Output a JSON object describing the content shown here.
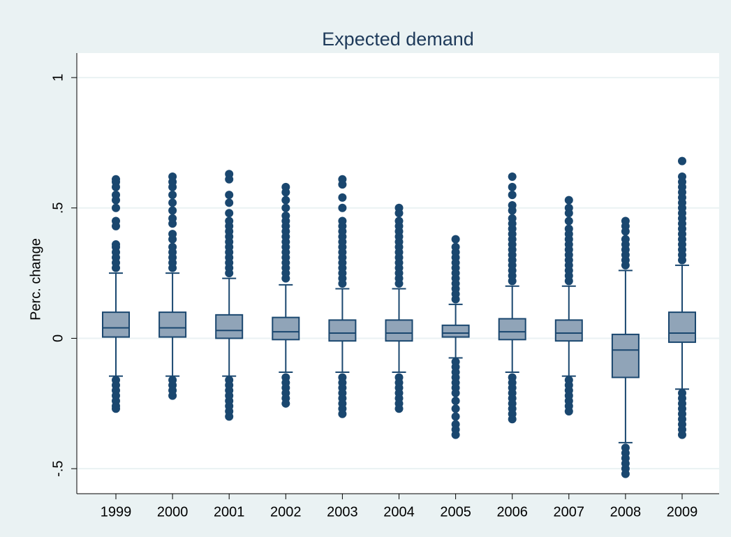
{
  "chart_data": {
    "type": "box",
    "title": "Expected demand",
    "y_label": "Perc. change",
    "categories": [
      "1999",
      "2000",
      "2001",
      "2002",
      "2003",
      "2004",
      "2005",
      "2006",
      "2007",
      "2008",
      "2009"
    ],
    "boxes": [
      {
        "whisker_low": -0.145,
        "q1": 0.005,
        "median": 0.04,
        "q3": 0.1,
        "whisker_high": 0.25,
        "outliers": [
          0.27,
          0.29,
          0.31,
          0.33,
          0.35,
          0.36,
          0.43,
          0.45,
          0.5,
          0.53,
          0.55,
          0.58,
          0.6,
          0.61,
          -0.16,
          -0.18,
          -0.2,
          -0.22,
          -0.24,
          -0.26,
          -0.27
        ]
      },
      {
        "whisker_low": -0.145,
        "q1": 0.005,
        "median": 0.04,
        "q3": 0.1,
        "whisker_high": 0.25,
        "outliers": [
          0.27,
          0.29,
          0.31,
          0.33,
          0.35,
          0.38,
          0.4,
          0.44,
          0.46,
          0.49,
          0.52,
          0.55,
          0.58,
          0.6,
          0.62,
          -0.16,
          -0.18,
          -0.2,
          -0.22
        ]
      },
      {
        "whisker_low": -0.145,
        "q1": 0.0,
        "median": 0.03,
        "q3": 0.09,
        "whisker_high": 0.23,
        "outliers": [
          0.25,
          0.27,
          0.29,
          0.31,
          0.33,
          0.35,
          0.37,
          0.39,
          0.41,
          0.43,
          0.45,
          0.48,
          0.52,
          0.55,
          0.61,
          0.63,
          -0.16,
          -0.18,
          -0.2,
          -0.22,
          -0.24,
          -0.26,
          -0.28,
          -0.3
        ]
      },
      {
        "whisker_low": -0.13,
        "q1": -0.005,
        "median": 0.025,
        "q3": 0.08,
        "whisker_high": 0.205,
        "outliers": [
          0.23,
          0.25,
          0.27,
          0.29,
          0.31,
          0.33,
          0.35,
          0.37,
          0.39,
          0.41,
          0.43,
          0.45,
          0.47,
          0.5,
          0.53,
          0.56,
          0.58,
          -0.15,
          -0.17,
          -0.19,
          -0.21,
          -0.23,
          -0.25
        ]
      },
      {
        "whisker_low": -0.13,
        "q1": -0.01,
        "median": 0.02,
        "q3": 0.07,
        "whisker_high": 0.19,
        "outliers": [
          0.21,
          0.23,
          0.25,
          0.27,
          0.29,
          0.31,
          0.33,
          0.35,
          0.37,
          0.39,
          0.41,
          0.43,
          0.45,
          0.5,
          0.54,
          0.59,
          0.61,
          -0.15,
          -0.17,
          -0.19,
          -0.21,
          -0.23,
          -0.25,
          -0.27,
          -0.29
        ]
      },
      {
        "whisker_low": -0.13,
        "q1": -0.01,
        "median": 0.02,
        "q3": 0.07,
        "whisker_high": 0.19,
        "outliers": [
          0.21,
          0.23,
          0.25,
          0.27,
          0.29,
          0.31,
          0.33,
          0.35,
          0.37,
          0.39,
          0.41,
          0.43,
          0.45,
          0.48,
          0.5,
          -0.15,
          -0.17,
          -0.19,
          -0.21,
          -0.23,
          -0.25,
          -0.27
        ]
      },
      {
        "whisker_low": -0.075,
        "q1": 0.005,
        "median": 0.02,
        "q3": 0.05,
        "whisker_high": 0.13,
        "outliers": [
          0.15,
          0.17,
          0.19,
          0.21,
          0.23,
          0.25,
          0.27,
          0.29,
          0.31,
          0.33,
          0.35,
          0.38,
          -0.09,
          -0.11,
          -0.13,
          -0.15,
          -0.17,
          -0.19,
          -0.21,
          -0.24,
          -0.27,
          -0.3,
          -0.33,
          -0.35,
          -0.37
        ]
      },
      {
        "whisker_low": -0.13,
        "q1": -0.005,
        "median": 0.025,
        "q3": 0.075,
        "whisker_high": 0.2,
        "outliers": [
          0.22,
          0.24,
          0.26,
          0.28,
          0.3,
          0.32,
          0.34,
          0.36,
          0.38,
          0.4,
          0.42,
          0.44,
          0.46,
          0.49,
          0.51,
          0.55,
          0.58,
          0.62,
          -0.15,
          -0.17,
          -0.19,
          -0.21,
          -0.23,
          -0.25,
          -0.27,
          -0.29,
          -0.31
        ]
      },
      {
        "whisker_low": -0.145,
        "q1": -0.01,
        "median": 0.02,
        "q3": 0.07,
        "whisker_high": 0.2,
        "outliers": [
          0.22,
          0.24,
          0.26,
          0.28,
          0.3,
          0.32,
          0.34,
          0.36,
          0.38,
          0.4,
          0.42,
          0.45,
          0.48,
          0.5,
          0.53,
          -0.16,
          -0.18,
          -0.2,
          -0.22,
          -0.24,
          -0.26,
          -0.28
        ]
      },
      {
        "whisker_low": -0.4,
        "q1": -0.15,
        "median": -0.045,
        "q3": 0.015,
        "whisker_high": 0.26,
        "outliers": [
          0.28,
          0.3,
          0.32,
          0.34,
          0.36,
          0.38,
          0.41,
          0.43,
          0.45,
          -0.42,
          -0.44,
          -0.46,
          -0.48,
          -0.5,
          -0.52
        ]
      },
      {
        "whisker_low": -0.195,
        "q1": -0.015,
        "median": 0.02,
        "q3": 0.1,
        "whisker_high": 0.28,
        "outliers": [
          0.3,
          0.32,
          0.34,
          0.36,
          0.38,
          0.4,
          0.42,
          0.44,
          0.46,
          0.48,
          0.5,
          0.52,
          0.54,
          0.56,
          0.58,
          0.6,
          0.62,
          0.68,
          -0.21,
          -0.23,
          -0.25,
          -0.27,
          -0.29,
          -0.31,
          -0.33,
          -0.35,
          -0.37
        ]
      }
    ],
    "box_color": "#90a4b8",
    "line_color": "#1a476f",
    "ylim": [
      -0.596,
      1.094
    ],
    "yticks": [
      {
        "value": -0.5,
        "label": "-.5"
      },
      0,
      {
        "value": 0.5,
        "label": ".5"
      },
      1
    ],
    "grid": true
  }
}
